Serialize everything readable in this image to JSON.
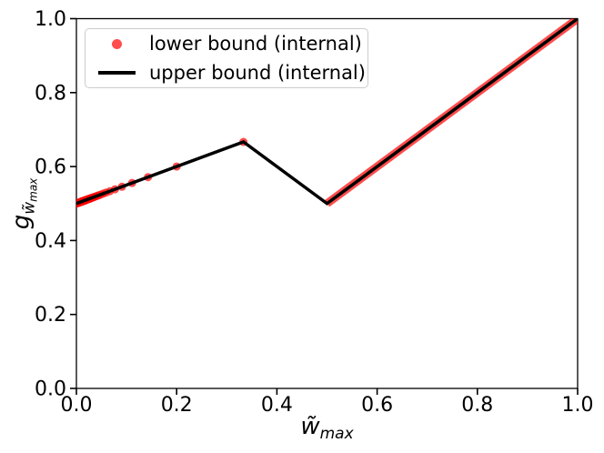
{
  "figure": {
    "background": "#ffffff",
    "xlabel": {
      "base": "w̃",
      "sub": "max"
    },
    "ylabel": {
      "base": "g",
      "sub": "w̃",
      "subsub": "max"
    },
    "legend": {
      "position": "upper left",
      "items": [
        {
          "label": "lower bound (internal)",
          "marker": "dot",
          "color": "rgba(255,0,0,0.7)"
        },
        {
          "label": "upper bound (internal)",
          "marker": "line",
          "color": "#000000"
        }
      ]
    }
  },
  "chart_data": {
    "type": "line",
    "title": "",
    "xlabel": "w̃_max",
    "ylabel": "g_w̃_max",
    "xlim": [
      0.0,
      1.0
    ],
    "ylim": [
      0.0,
      1.0
    ],
    "xticks": [
      "0.0",
      "0.2",
      "0.4",
      "0.6",
      "0.8",
      "1.0"
    ],
    "yticks": [
      "0.0",
      "0.2",
      "0.4",
      "0.6",
      "0.8",
      "1.0"
    ],
    "grid": false,
    "legend_position": "upper left",
    "series": [
      {
        "name": "upper bound (internal)",
        "type": "line",
        "color": "#000000",
        "linewidth": 3.5,
        "points": [
          [
            0.0,
            0.5
          ],
          [
            0.3333,
            0.6667
          ],
          [
            0.5,
            0.5
          ],
          [
            1.0,
            1.0
          ]
        ]
      },
      {
        "name": "lower bound (internal)",
        "type": "scatter",
        "color": "rgba(255,0,0,0.7)",
        "marker_radius": 4.5,
        "x_rule": "x = 1/n for odd n >= 3 (dots lie on y = 0.5 + 0.5x)",
        "x": [
          0.3333,
          0.2,
          0.1429,
          0.1111,
          0.0909,
          0.0769,
          0.0667,
          0.0588,
          0.0526,
          0.0476,
          0.0435,
          0.04,
          0.037,
          0.0345,
          0.0323,
          0.0303,
          0.0286,
          0.027,
          0.0256,
          0.0244,
          0.0233,
          0.0222,
          0.0213,
          0.0204,
          0.0196,
          0.0189,
          0.0182,
          0.0175,
          0.0169,
          0.0164,
          0.0159,
          0.0154,
          0.0149,
          0.0145,
          0.0141,
          0.0137,
          0.0133,
          0.013,
          0.0127,
          0.0123,
          0.012,
          0.0118,
          0.0115,
          0.0112,
          0.011,
          0.0108,
          0.0105,
          0.0103,
          0.0101,
          0.009,
          0.008,
          0.007,
          0.006,
          0.005,
          0.004,
          0.003,
          0.002,
          0.001
        ],
        "y_slope": 0.5,
        "y_intercept": 0.5,
        "dense_segment": {
          "points": [
            [
              0.5,
              0.5
            ],
            [
              1.0,
              1.0
            ]
          ],
          "linewidth": 9
        }
      }
    ]
  },
  "geometry_note": "axes box spans data (0,0)-(1,1); ticks outward on left/bottom only"
}
